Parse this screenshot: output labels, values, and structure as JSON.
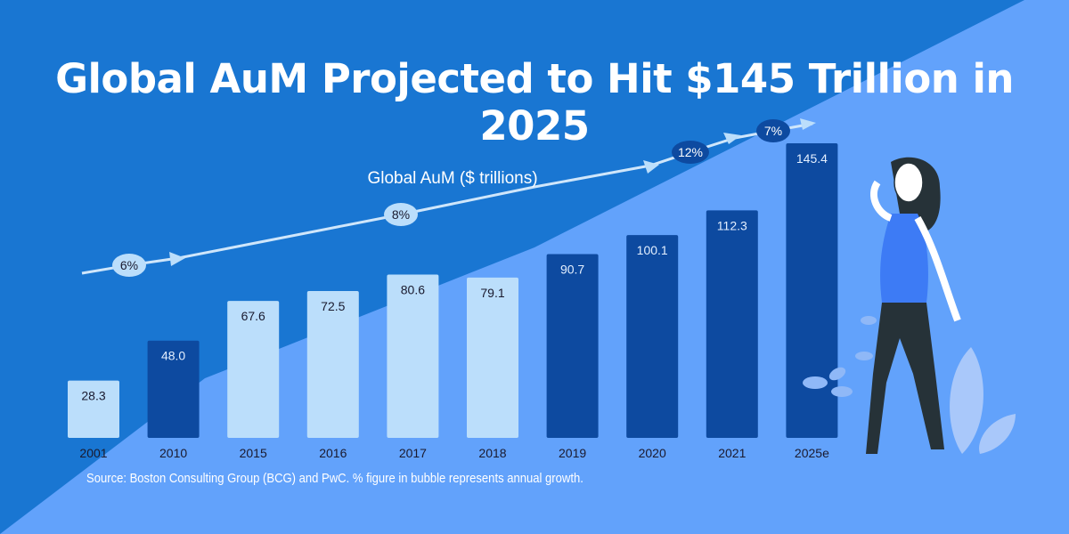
{
  "title": "Global AuM Projected to Hit $145 Trillion in 2025",
  "source": "Source: Boston Consulting Group (BCG) and PwC. % figure in bubble represents annual growth.",
  "colors": {
    "background": "#1976d2",
    "background_light": "#62a2fb",
    "bar_light": "#bbdefb",
    "bar_dark": "#0d4aa0",
    "line": "#cfe6fb"
  },
  "chart_data": {
    "type": "bar",
    "title": "Global AuM Projected to Hit $145 Trillion in 2025",
    "series_label": "Global AuM ($ trillions)",
    "categories": [
      "2001",
      "2010",
      "2015",
      "2016",
      "2017",
      "2018",
      "2019",
      "2020",
      "2021",
      "2025e"
    ],
    "values": [
      28.3,
      48.0,
      67.6,
      72.5,
      80.6,
      79.1,
      90.7,
      100.1,
      112.3,
      145.4
    ],
    "value_labels": [
      "28.3",
      "48.0",
      "67.6",
      "72.5",
      "80.6",
      "79.1",
      "90.7",
      "100.1",
      "112.3",
      "145.4"
    ],
    "bar_styles": [
      "light",
      "dark",
      "light",
      "light",
      "light",
      "light",
      "dark",
      "dark",
      "dark",
      "dark"
    ],
    "growth_bubbles": [
      {
        "label": "6%",
        "style": "light"
      },
      {
        "label": "8%",
        "style": "light"
      },
      {
        "label": "12%",
        "style": "dark"
      },
      {
        "label": "7%",
        "style": "dark"
      }
    ],
    "ylim": [
      0,
      150
    ],
    "grid": false
  }
}
